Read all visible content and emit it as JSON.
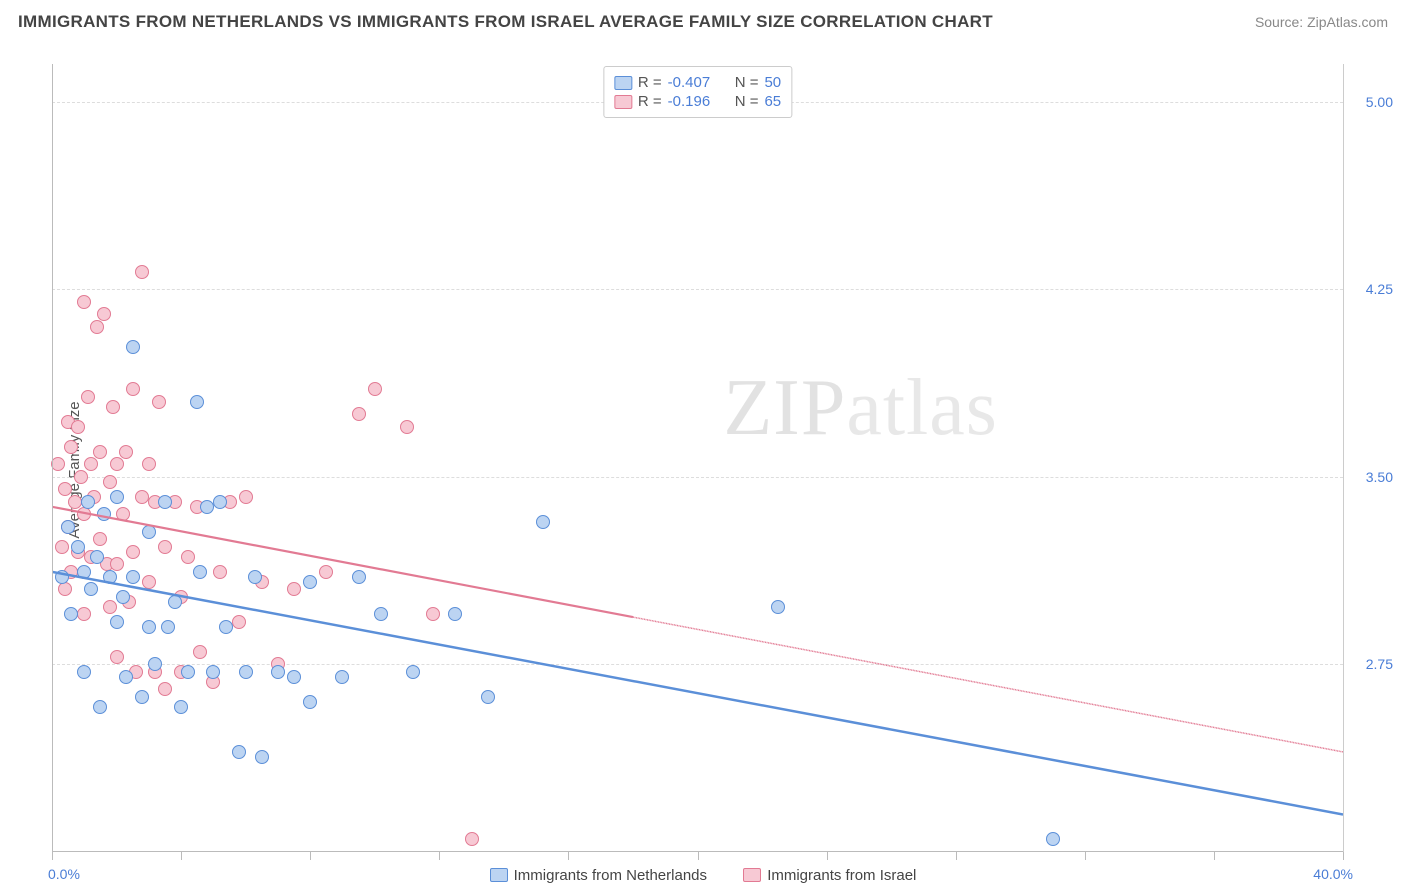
{
  "title": "IMMIGRANTS FROM NETHERLANDS VS IMMIGRANTS FROM ISRAEL AVERAGE FAMILY SIZE CORRELATION CHART",
  "source": "Source: ZipAtlas.com",
  "watermark_a": "ZIP",
  "watermark_b": "atlas",
  "ylabel": "Average Family Size",
  "chart": {
    "type": "scatter",
    "xlim": [
      0,
      40
    ],
    "ylim": [
      2.0,
      5.15
    ],
    "x_unit": "%",
    "xlim_labels": [
      "0.0%",
      "40.0%"
    ],
    "ytick_values": [
      2.75,
      3.5,
      4.25,
      5.0
    ],
    "ytick_labels": [
      "2.75",
      "3.50",
      "4.25",
      "5.00"
    ],
    "xtick_positions_pct": [
      0,
      10,
      20,
      30,
      40,
      50,
      60,
      70,
      80,
      90,
      100
    ],
    "background_color": "#ffffff",
    "grid_color": "#dddddd",
    "marker_size": 14
  },
  "series": [
    {
      "id": "netherlands",
      "legend_label": "Immigrants from Netherlands",
      "fill": "#bcd4f2",
      "stroke": "#5b8fd8",
      "R": "-0.407",
      "N": "50",
      "trend": {
        "x1": 0,
        "y1": 3.12,
        "x2": 40,
        "y2": 2.15,
        "solid_until_x": 40
      },
      "points": [
        [
          0.3,
          3.1
        ],
        [
          0.5,
          3.3
        ],
        [
          0.6,
          2.95
        ],
        [
          0.8,
          3.22
        ],
        [
          1.0,
          3.12
        ],
        [
          1.0,
          2.72
        ],
        [
          1.1,
          3.4
        ],
        [
          1.2,
          3.05
        ],
        [
          1.4,
          3.18
        ],
        [
          1.5,
          2.58
        ],
        [
          1.6,
          3.35
        ],
        [
          1.8,
          3.1
        ],
        [
          2.0,
          3.42
        ],
        [
          2.0,
          2.92
        ],
        [
          2.2,
          3.02
        ],
        [
          2.3,
          2.7
        ],
        [
          2.5,
          3.1
        ],
        [
          2.5,
          4.02
        ],
        [
          2.8,
          2.62
        ],
        [
          3.0,
          3.28
        ],
        [
          3.0,
          2.9
        ],
        [
          3.2,
          2.75
        ],
        [
          3.5,
          3.4
        ],
        [
          3.6,
          2.9
        ],
        [
          3.8,
          3.0
        ],
        [
          4.0,
          2.58
        ],
        [
          4.2,
          2.72
        ],
        [
          4.5,
          3.8
        ],
        [
          4.6,
          3.12
        ],
        [
          5.0,
          2.72
        ],
        [
          5.2,
          3.4
        ],
        [
          5.4,
          2.9
        ],
        [
          5.8,
          2.4
        ],
        [
          6.0,
          2.72
        ],
        [
          6.3,
          3.1
        ],
        [
          6.5,
          2.38
        ],
        [
          7.0,
          2.72
        ],
        [
          7.5,
          2.7
        ],
        [
          8.0,
          3.08
        ],
        [
          8.0,
          2.6
        ],
        [
          9.0,
          2.7
        ],
        [
          9.5,
          3.1
        ],
        [
          10.2,
          2.95
        ],
        [
          11.2,
          2.72
        ],
        [
          12.5,
          2.95
        ],
        [
          13.5,
          2.62
        ],
        [
          15.2,
          3.32
        ],
        [
          22.5,
          2.98
        ],
        [
          31.0,
          2.05
        ],
        [
          4.8,
          3.38
        ]
      ]
    },
    {
      "id": "israel",
      "legend_label": "Immigrants from Israel",
      "fill": "#f7c9d4",
      "stroke": "#e27a93",
      "R": "-0.196",
      "N": "65",
      "trend": {
        "x1": 0,
        "y1": 3.38,
        "x2": 40,
        "y2": 2.4,
        "solid_until_x": 18
      },
      "points": [
        [
          0.2,
          3.55
        ],
        [
          0.3,
          3.22
        ],
        [
          0.4,
          3.45
        ],
        [
          0.4,
          3.05
        ],
        [
          0.5,
          3.72
        ],
        [
          0.5,
          3.3
        ],
        [
          0.6,
          3.62
        ],
        [
          0.6,
          3.12
        ],
        [
          0.7,
          3.4
        ],
        [
          0.8,
          3.7
        ],
        [
          0.8,
          3.2
        ],
        [
          0.9,
          3.5
        ],
        [
          1.0,
          4.2
        ],
        [
          1.0,
          3.35
        ],
        [
          1.0,
          2.95
        ],
        [
          1.1,
          3.82
        ],
        [
          1.2,
          3.18
        ],
        [
          1.2,
          3.55
        ],
        [
          1.3,
          3.42
        ],
        [
          1.4,
          4.1
        ],
        [
          1.5,
          3.25
        ],
        [
          1.5,
          3.6
        ],
        [
          1.6,
          4.15
        ],
        [
          1.7,
          3.15
        ],
        [
          1.8,
          3.48
        ],
        [
          1.8,
          2.98
        ],
        [
          1.9,
          3.78
        ],
        [
          2.0,
          3.15
        ],
        [
          2.0,
          3.55
        ],
        [
          2.0,
          2.78
        ],
        [
          2.2,
          3.35
        ],
        [
          2.3,
          3.6
        ],
        [
          2.4,
          3.0
        ],
        [
          2.5,
          3.85
        ],
        [
          2.5,
          3.2
        ],
        [
          2.6,
          2.72
        ],
        [
          2.8,
          3.42
        ],
        [
          2.8,
          4.32
        ],
        [
          3.0,
          3.55
        ],
        [
          3.0,
          3.08
        ],
        [
          3.2,
          2.72
        ],
        [
          3.3,
          3.8
        ],
        [
          3.5,
          3.22
        ],
        [
          3.5,
          2.65
        ],
        [
          3.8,
          3.4
        ],
        [
          4.0,
          3.02
        ],
        [
          4.0,
          2.72
        ],
        [
          4.2,
          3.18
        ],
        [
          4.5,
          3.38
        ],
        [
          4.6,
          2.8
        ],
        [
          5.0,
          2.68
        ],
        [
          5.2,
          3.12
        ],
        [
          5.5,
          3.4
        ],
        [
          5.8,
          2.92
        ],
        [
          6.0,
          3.42
        ],
        [
          6.5,
          3.08
        ],
        [
          7.0,
          2.75
        ],
        [
          7.5,
          3.05
        ],
        [
          8.5,
          3.12
        ],
        [
          9.5,
          3.75
        ],
        [
          10.0,
          3.85
        ],
        [
          11.0,
          3.7
        ],
        [
          11.8,
          2.95
        ],
        [
          13.0,
          2.05
        ],
        [
          3.2,
          3.4
        ]
      ]
    }
  ],
  "legend_top_labels": {
    "R": "R =",
    "N": "N ="
  }
}
